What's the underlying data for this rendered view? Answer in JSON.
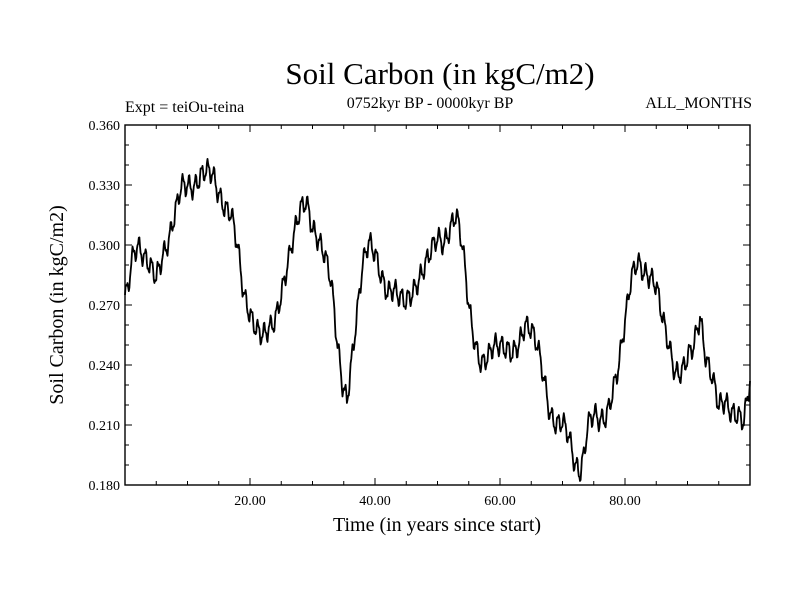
{
  "chart_data": {
    "type": "line",
    "title": "Soil Carbon (in kgC/m2)",
    "subtitle_left": "Expt = teiOu-teina",
    "subtitle_center": "0752kyr BP - 0000kyr BP",
    "subtitle_right": "ALL_MONTHS",
    "xlabel": "Time (in years since start)",
    "ylabel": "Soil Carbon (in kgC/m2)",
    "xlim": [
      0,
      100
    ],
    "ylim": [
      0.18,
      0.36
    ],
    "x_ticks": [
      20,
      40,
      60,
      80
    ],
    "x_tick_labels": [
      "20.00",
      "40.00",
      "60.00",
      "80.00"
    ],
    "y_ticks": [
      0.18,
      0.21,
      0.24,
      0.27,
      0.3,
      0.33,
      0.36
    ],
    "y_tick_labels": [
      "0.180",
      "0.210",
      "0.240",
      "0.270",
      "0.300",
      "0.330",
      "0.360"
    ],
    "series": [
      {
        "name": "Soil Carbon",
        "x": [
          0,
          0.5,
          1,
          2,
          3,
          4,
          5,
          6,
          7,
          8,
          9,
          10,
          11,
          12,
          13,
          14,
          15,
          16,
          17,
          18,
          19,
          20,
          21,
          22,
          23,
          24,
          25,
          26,
          27,
          28,
          29,
          30,
          31,
          32,
          33,
          34,
          34.8,
          35.5,
          36,
          37,
          38,
          39,
          40,
          41,
          42,
          43,
          44,
          45,
          46,
          47,
          48,
          49,
          50,
          51,
          52,
          53,
          54,
          55,
          56,
          57,
          58,
          59,
          60,
          61,
          62,
          63,
          64,
          65,
          66,
          67,
          68,
          69,
          70,
          71,
          72,
          72.8,
          73.5,
          74,
          75,
          76,
          77,
          78,
          79,
          80,
          81,
          82,
          83,
          84,
          85,
          86,
          87,
          88,
          89,
          90,
          91,
          92,
          93,
          94,
          95,
          96,
          97,
          98,
          99,
          100
        ],
        "values": [
          0.275,
          0.278,
          0.292,
          0.3,
          0.294,
          0.29,
          0.284,
          0.294,
          0.302,
          0.316,
          0.33,
          0.33,
          0.328,
          0.334,
          0.338,
          0.336,
          0.325,
          0.318,
          0.316,
          0.3,
          0.275,
          0.265,
          0.258,
          0.255,
          0.258,
          0.262,
          0.275,
          0.29,
          0.305,
          0.318,
          0.322,
          0.308,
          0.302,
          0.295,
          0.282,
          0.25,
          0.23,
          0.222,
          0.235,
          0.262,
          0.29,
          0.302,
          0.296,
          0.284,
          0.276,
          0.278,
          0.274,
          0.272,
          0.276,
          0.282,
          0.29,
          0.298,
          0.304,
          0.3,
          0.308,
          0.316,
          0.3,
          0.27,
          0.25,
          0.24,
          0.244,
          0.25,
          0.25,
          0.248,
          0.246,
          0.25,
          0.26,
          0.258,
          0.25,
          0.234,
          0.215,
          0.21,
          0.212,
          0.205,
          0.19,
          0.186,
          0.196,
          0.21,
          0.216,
          0.212,
          0.214,
          0.226,
          0.24,
          0.262,
          0.284,
          0.292,
          0.286,
          0.284,
          0.28,
          0.264,
          0.25,
          0.236,
          0.236,
          0.244,
          0.25,
          0.264,
          0.242,
          0.234,
          0.22,
          0.222,
          0.216,
          0.215,
          0.212,
          0.232
        ]
      }
    ]
  }
}
